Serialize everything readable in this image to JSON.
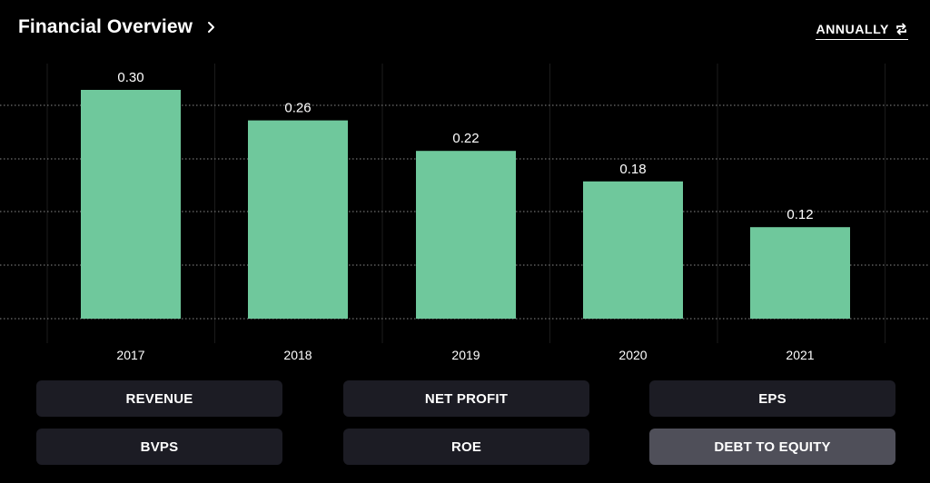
{
  "header": {
    "title": "Financial Overview",
    "period_label": "ANNUALLY"
  },
  "colors": {
    "bar": "#6fc89c",
    "grid": "#8a8a8a",
    "button_bg": "#1c1c24",
    "button_active_bg": "#4f4f59"
  },
  "chart_data": {
    "type": "bar",
    "title": "",
    "xlabel": "",
    "ylabel": "",
    "categories": [
      "2017",
      "2018",
      "2019",
      "2020",
      "2021"
    ],
    "values": [
      0.3,
      0.26,
      0.22,
      0.18,
      0.12
    ],
    "value_labels": [
      "0.30",
      "0.26",
      "0.22",
      "0.18",
      "0.12"
    ],
    "ylim": [
      0,
      0.3
    ],
    "grid": true
  },
  "metrics": [
    {
      "label": "REVENUE",
      "active": false
    },
    {
      "label": "NET PROFIT",
      "active": false
    },
    {
      "label": "EPS",
      "active": false
    },
    {
      "label": "BVPS",
      "active": false
    },
    {
      "label": "ROE",
      "active": false
    },
    {
      "label": "DEBT TO EQUITY",
      "active": true
    }
  ]
}
